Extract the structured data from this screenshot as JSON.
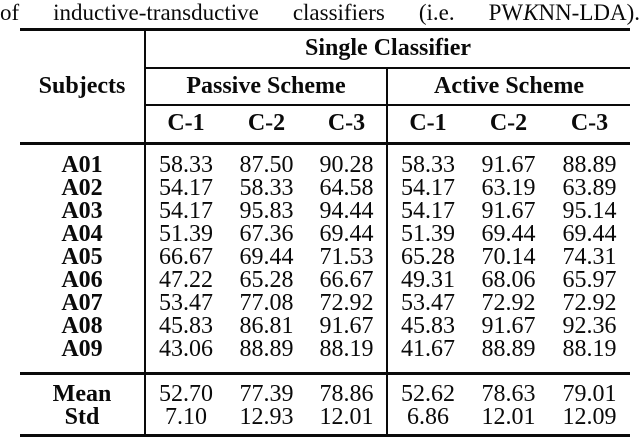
{
  "caption": {
    "prefix": "of inductive-transductive classifiers (i.e. PW",
    "italic_letter": "K",
    "suffix": "NN-LDA)."
  },
  "table": {
    "corner_header": "Subjects",
    "group_header": "Single Classifier",
    "scheme_headers": [
      "Passive Scheme",
      "Active Scheme"
    ],
    "column_headers": [
      "C-1",
      "C-2",
      "C-3",
      "C-1",
      "C-2",
      "C-3"
    ],
    "rows": [
      {
        "label": "A01",
        "values": [
          "58.33",
          "87.50",
          "90.28",
          "58.33",
          "91.67",
          "88.89"
        ]
      },
      {
        "label": "A02",
        "values": [
          "54.17",
          "58.33",
          "64.58",
          "54.17",
          "63.19",
          "63.89"
        ]
      },
      {
        "label": "A03",
        "values": [
          "54.17",
          "95.83",
          "94.44",
          "54.17",
          "91.67",
          "95.14"
        ]
      },
      {
        "label": "A04",
        "values": [
          "51.39",
          "67.36",
          "69.44",
          "51.39",
          "69.44",
          "69.44"
        ]
      },
      {
        "label": "A05",
        "values": [
          "66.67",
          "69.44",
          "71.53",
          "65.28",
          "70.14",
          "74.31"
        ]
      },
      {
        "label": "A06",
        "values": [
          "47.22",
          "65.28",
          "66.67",
          "49.31",
          "68.06",
          "65.97"
        ]
      },
      {
        "label": "A07",
        "values": [
          "53.47",
          "77.08",
          "72.92",
          "53.47",
          "72.92",
          "72.92"
        ]
      },
      {
        "label": "A08",
        "values": [
          "45.83",
          "86.81",
          "91.67",
          "45.83",
          "91.67",
          "92.36"
        ]
      },
      {
        "label": "A09",
        "values": [
          "43.06",
          "88.89",
          "88.19",
          "41.67",
          "88.89",
          "88.19"
        ]
      }
    ],
    "summary_rows": [
      {
        "label": "Mean",
        "values": [
          "52.70",
          "77.39",
          "78.86",
          "52.62",
          "78.63",
          "79.01"
        ]
      },
      {
        "label": "Std",
        "values": [
          "7.10",
          "12.93",
          "12.01",
          "6.86",
          "12.01",
          "12.09"
        ]
      }
    ]
  }
}
